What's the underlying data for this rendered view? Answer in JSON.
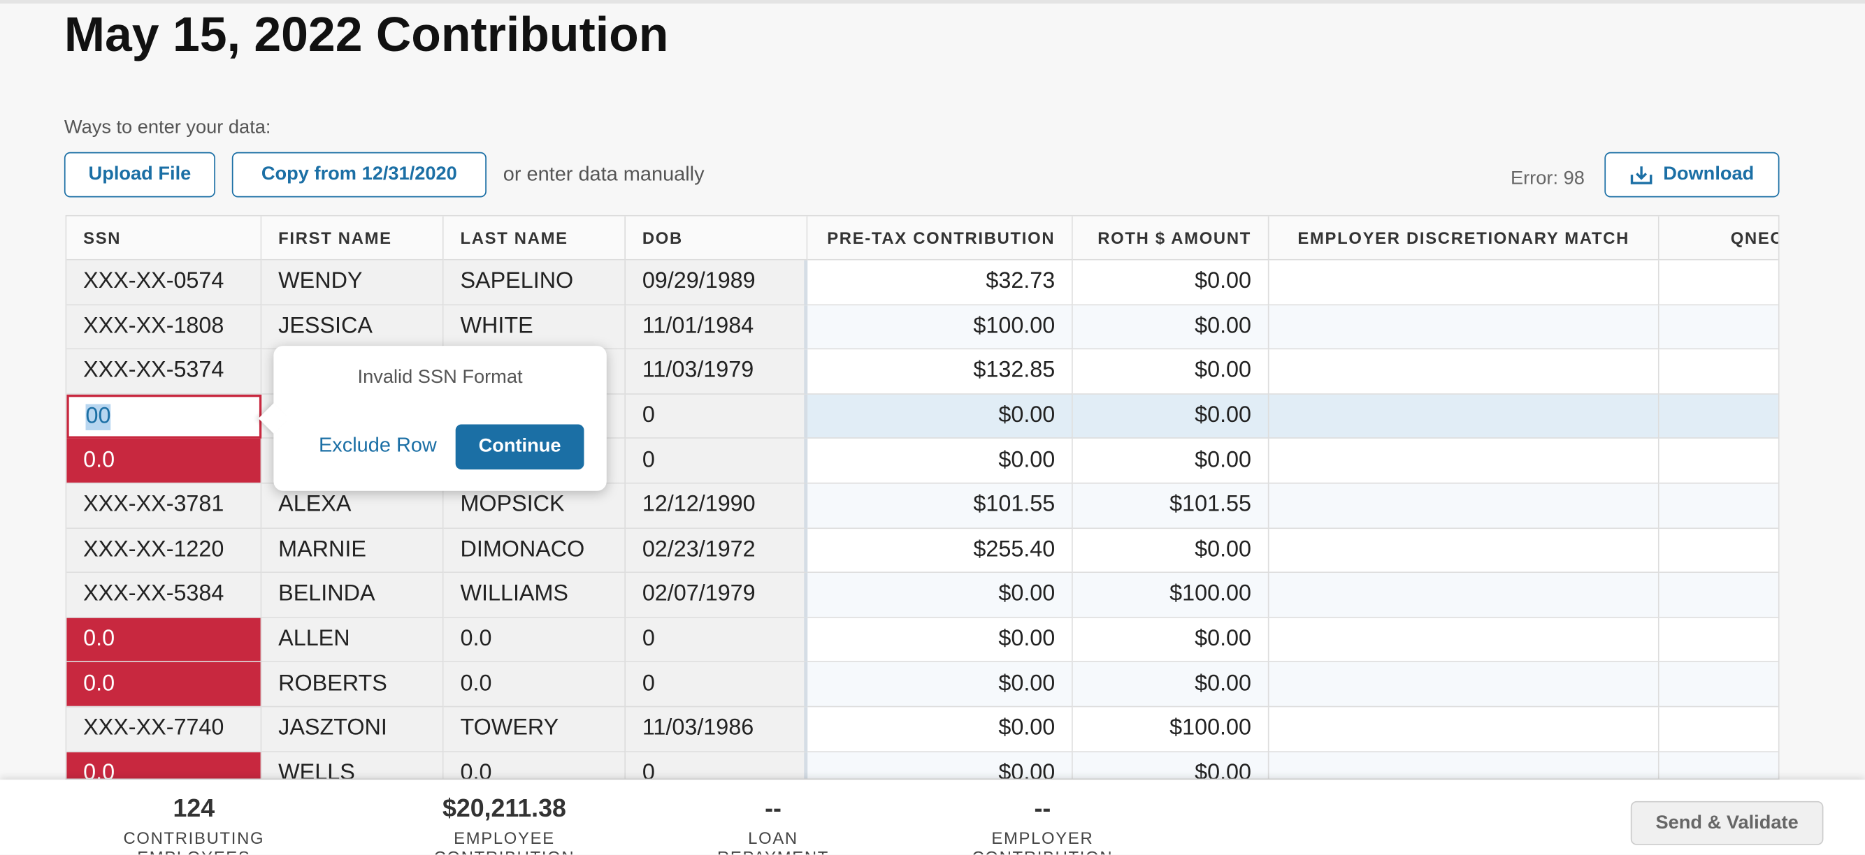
{
  "header": {
    "title": "May 15, 2022 Contribution"
  },
  "toolbar": {
    "label": "Ways to enter your data:",
    "buttons": [
      "Upload File",
      "Copy from 12/31/2020"
    ],
    "manual": "or enter data manually",
    "error": "Error: 98",
    "download": "Download"
  },
  "table": {
    "columns": [
      "SSN",
      "FIRST NAME",
      "LAST NAME",
      "DOB",
      "PRE-TAX CONTRIBUTION",
      "ROTH $ AMOUNT",
      "EMPLOYER DISCRETIONARY MATCH",
      "QNEC"
    ],
    "rows": [
      {
        "cells": [
          "XXX-XX-0574",
          "WENDY",
          "SAPELINO",
          "09/29/1989",
          "$32.73",
          "$0.00"
        ]
      },
      {
        "cells": [
          "XXX-XX-1808",
          "JESSICA",
          "WHITE",
          "11/01/1984",
          "$100.00",
          "$0.00"
        ]
      },
      {
        "cells": [
          "XXX-XX-5374",
          null,
          null,
          "11/03/1979",
          "$132.85",
          "$0.00"
        ]
      },
      {
        "cells": [
          "00",
          null,
          null,
          "0",
          "$0.00",
          "$0.00"
        ],
        "selected": true
      },
      {
        "cells": [
          "0.0",
          null,
          null,
          "0",
          "$0.00",
          "$0.00"
        ],
        "invalid": true
      },
      {
        "cells": [
          "XXX-XX-3781",
          "ALEXA",
          "MOPSICK",
          "12/12/1990",
          "$101.55",
          "$101.55"
        ]
      },
      {
        "cells": [
          "XXX-XX-1220",
          "MARNIE",
          "DIMONACO",
          "02/23/1972",
          "$255.40",
          "$0.00"
        ]
      },
      {
        "cells": [
          "XXX-XX-5384",
          "BELINDA",
          "WILLIAMS",
          "02/07/1979",
          "$0.00",
          "$100.00"
        ]
      },
      {
        "cells": [
          "0.0",
          "ALLEN",
          "0.0",
          "0",
          "$0.00",
          "$0.00"
        ],
        "invalid": true
      },
      {
        "cells": [
          "0.0",
          "ROBERTS",
          "0.0",
          "0",
          "$0.00",
          "$0.00"
        ],
        "invalid": true
      },
      {
        "cells": [
          "XXX-XX-7740",
          "JASZTONI",
          "TOWERY",
          "11/03/1986",
          "$0.00",
          "$100.00"
        ]
      },
      {
        "cells": [
          "0.0",
          "WELLS",
          "0.0",
          "0",
          "$0.00",
          "$0.00"
        ],
        "invalid": true
      }
    ]
  },
  "popup": {
    "message": "Invalid SSN Format",
    "exclude": "Exclude Row",
    "continue": "Continue"
  },
  "footer": {
    "stats": [
      {
        "value": "124",
        "label": "CONTRIBUTING EMPLOYEES"
      },
      {
        "value": "$20,211.38",
        "label": "EMPLOYEE CONTRIBUTION"
      },
      {
        "value": "--",
        "label": "LOAN REPAYMENT"
      },
      {
        "value": "--",
        "label": "EMPLOYER CONTRIBUTION"
      }
    ],
    "button": "Send & Validate"
  }
}
